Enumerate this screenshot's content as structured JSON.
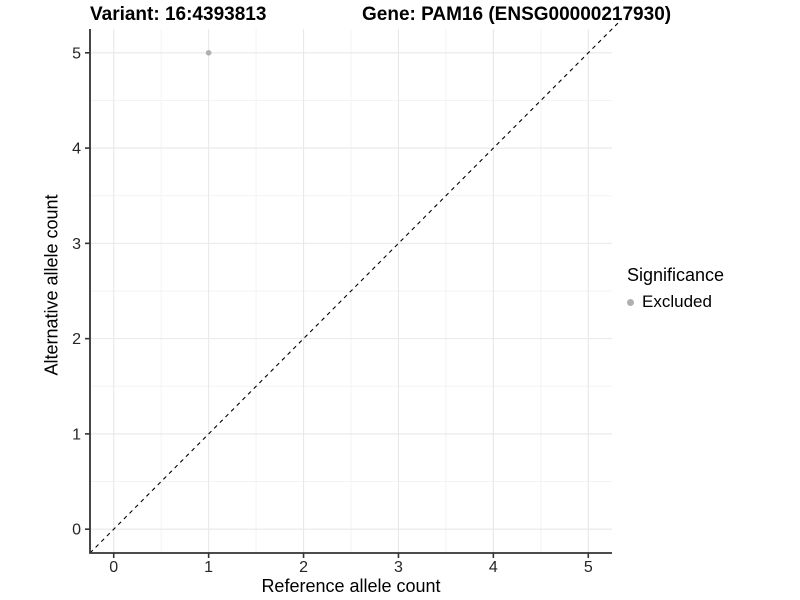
{
  "chart_data": {
    "type": "scatter",
    "title_left": "Variant: 16:4393813",
    "title_right": "Gene: PAM16 (ENSG00000217930)",
    "xlabel": "Reference allele count",
    "ylabel": "Alternative allele count",
    "xlim": [
      -0.25,
      5.25
    ],
    "ylim": [
      -0.25,
      5.25
    ],
    "xticks": [
      0,
      1,
      2,
      3,
      4,
      5
    ],
    "yticks": [
      0,
      1,
      2,
      3,
      4,
      5
    ],
    "minor_xticks": [
      0.5,
      1.5,
      2.5,
      3.5,
      4.5
    ],
    "minor_yticks": [
      0.5,
      1.5,
      2.5,
      3.5,
      4.5
    ],
    "grid": "major+minor",
    "series": [
      {
        "name": "Excluded",
        "color": "#b0b0b0",
        "points": [
          {
            "x": 1,
            "y": 5
          }
        ]
      }
    ],
    "reference_line": {
      "slope": 1,
      "intercept": 0,
      "style": "dashed",
      "color": "#000000"
    },
    "legend": {
      "title": "Significance",
      "position": "right",
      "items": [
        {
          "label": "Excluded",
          "color": "#b0b0b0"
        }
      ]
    }
  },
  "colors": {
    "background": "#ffffff",
    "grid_major": "#e8e8e8",
    "grid_minor": "#f3f3f3",
    "axis_line": "#333333",
    "tick_mark": "#333333",
    "tick_label": "#262626",
    "point": "#b0b0b0",
    "reference_line": "#000000"
  }
}
